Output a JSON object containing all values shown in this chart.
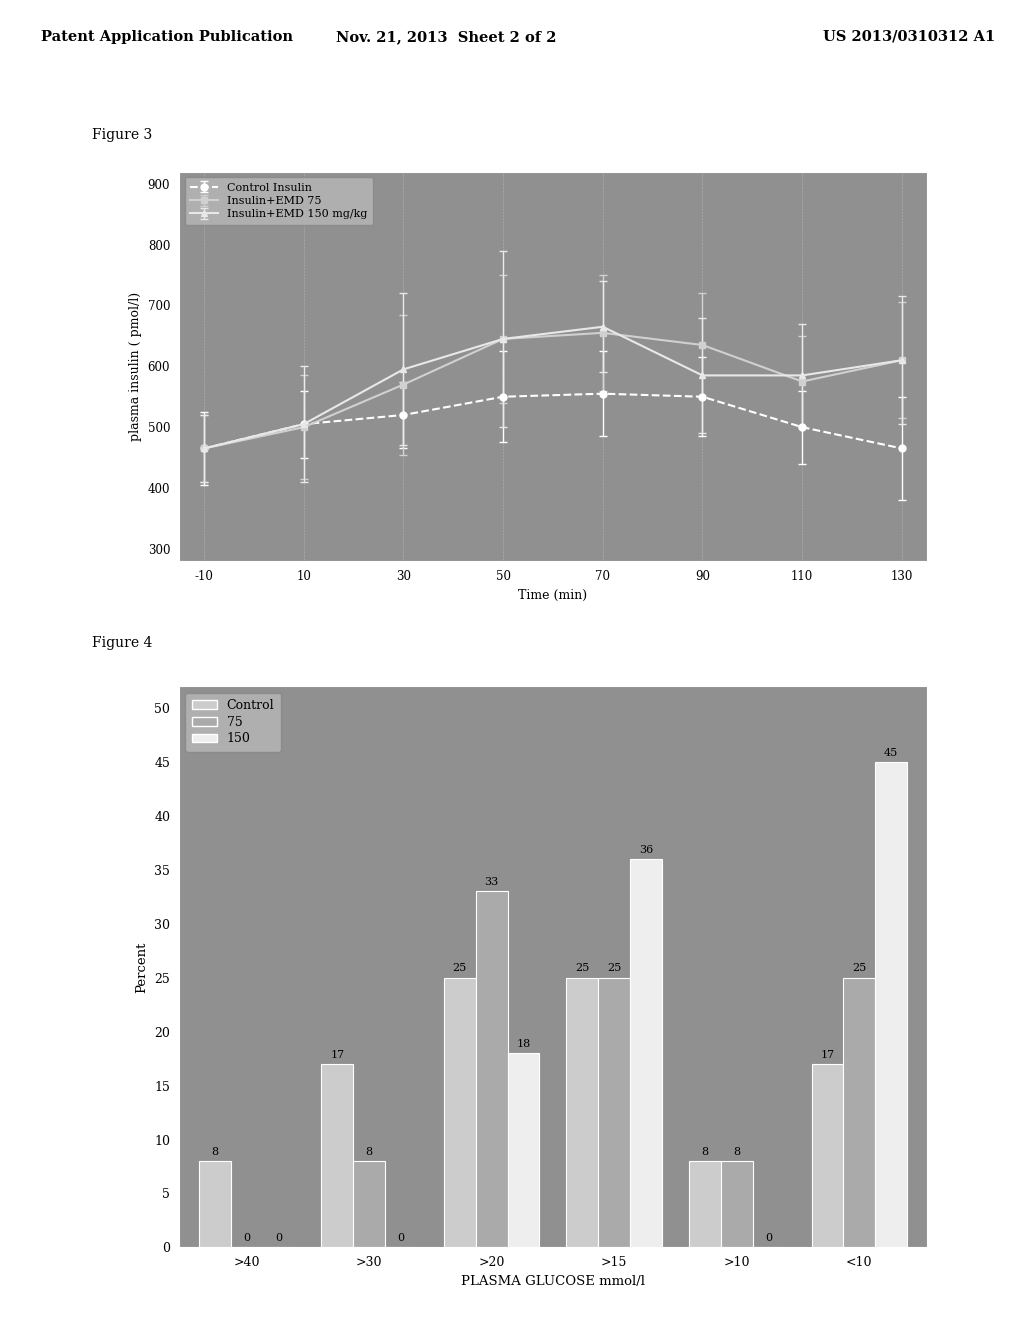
{
  "header_left": "Patent Application Publication",
  "header_mid": "Nov. 21, 2013  Sheet 2 of 2",
  "header_right": "US 2013/0310312 A1",
  "fig3_label": "Figure 3",
  "fig3_xlabel": "Time (min)",
  "fig3_ylabel": "plasma insulin ( pmol/l)",
  "fig3_xlim": [
    -15,
    135
  ],
  "fig3_ylim": [
    280,
    920
  ],
  "fig3_xticks": [
    -10,
    10,
    30,
    50,
    70,
    90,
    110,
    130
  ],
  "fig3_yticks": [
    300,
    400,
    500,
    600,
    700,
    800,
    900
  ],
  "fig3_bg": "#909090",
  "fig3_series": [
    {
      "label": "Control Insulin",
      "x": [
        -10,
        10,
        30,
        50,
        70,
        90,
        110,
        130
      ],
      "y": [
        465,
        505,
        520,
        550,
        555,
        550,
        500,
        465
      ],
      "yerr": [
        60,
        55,
        55,
        75,
        70,
        65,
        60,
        85
      ],
      "color": "#ffffff",
      "marker": "o",
      "linestyle": "--"
    },
    {
      "label": "Insulin+EMD 75",
      "x": [
        -10,
        10,
        30,
        50,
        70,
        90,
        110,
        130
      ],
      "y": [
        465,
        500,
        570,
        645,
        655,
        635,
        575,
        610
      ],
      "yerr": [
        55,
        85,
        115,
        105,
        95,
        85,
        75,
        95
      ],
      "color": "#d0d0d0",
      "marker": "s",
      "linestyle": "-"
    },
    {
      "label": "Insulin+EMD 150 mg/kg",
      "x": [
        -10,
        10,
        30,
        50,
        70,
        90,
        110,
        130
      ],
      "y": [
        465,
        505,
        595,
        645,
        665,
        585,
        585,
        610
      ],
      "yerr": [
        55,
        95,
        125,
        145,
        75,
        95,
        85,
        105
      ],
      "color": "#e8e8e8",
      "marker": "^",
      "linestyle": "-"
    }
  ],
  "fig4_label": "Figure 4",
  "fig4_xlabel": "PLASMA GLUCOSE mmol/l",
  "fig4_ylabel": "Percent",
  "fig4_categories": [
    ">40",
    ">30",
    ">20",
    ">15",
    ">10",
    "<10"
  ],
  "fig4_ylim": [
    0,
    52
  ],
  "fig4_yticks": [
    0,
    5,
    10,
    15,
    20,
    25,
    30,
    35,
    40,
    45,
    50
  ],
  "fig4_bg": "#909090",
  "fig4_groups": {
    "Control": [
      8,
      17,
      25,
      25,
      8,
      17
    ],
    "75": [
      0,
      8,
      33,
      25,
      8,
      25
    ],
    "150": [
      0,
      0,
      18,
      36,
      0,
      45
    ]
  },
  "fig4_bar_colors": {
    "Control": "#cccccc",
    "75": "#aaaaaa",
    "150": "#eeeeee"
  },
  "fig4_legend_labels": [
    "Control",
    "75",
    "150"
  ],
  "fig4_legend_colors": [
    "#cccccc",
    "#aaaaaa",
    "#eeeeee"
  ]
}
